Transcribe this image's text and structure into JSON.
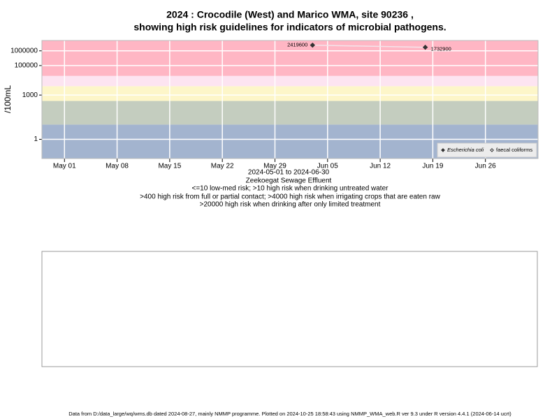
{
  "chart_data": {
    "type": "line",
    "title": "2024 : Crocodile (West) and Marico WMA, site 90236 ,",
    "subtitle": "showing high risk guidelines for indicators of microbial pathogens.",
    "y_label": "/100mL",
    "x_caption": "2024-05-01 to 2024-06-30",
    "site_name": "Zeekoegat Sewage Effluent",
    "notes": [
      "<=10 low-med risk; >10 high risk when drinking untreated water",
      ">400 high risk from full or partial contact; >4000 high risk when irrigating crops that are eaten raw",
      ">20000 high risk when drinking after only limited treatment"
    ],
    "footer": "Data from D:/data_large/wq/wms.db dated 2024-08-27, mainly NMMP programme. Plotted on 2024-10-25 18:58:43 using NMMP_WMA_web.R ver 9.3 under R version 4.4.1 (2024-06-14 ucrt)",
    "x": [
      "2024-06-03",
      "2024-06-18"
    ],
    "series": [
      {
        "name": "Escherichia coli",
        "color": "#333333",
        "line_color": "#f3e4ea",
        "marker": "filled-diamond",
        "values": [
          2419600,
          1732900
        ]
      },
      {
        "name": "faecal coliforms",
        "color": "#333333",
        "line_color": "#f3e4ea",
        "marker": "open-diamond",
        "values": [
          null,
          null
        ]
      }
    ],
    "log_y": true,
    "xlim": [
      "2024-04-28",
      "2024-07-03"
    ],
    "xticks": [
      {
        "value": "2024-05-01",
        "label": "May 01"
      },
      {
        "value": "2024-05-08",
        "label": "May 08"
      },
      {
        "value": "2024-05-15",
        "label": "May 15"
      },
      {
        "value": "2024-05-22",
        "label": "May 22"
      },
      {
        "value": "2024-05-29",
        "label": "May 29"
      },
      {
        "value": "2024-06-05",
        "label": "Jun 05"
      },
      {
        "value": "2024-06-12",
        "label": "Jun 12"
      },
      {
        "value": "2024-06-19",
        "label": "Jun 19"
      },
      {
        "value": "2024-06-26",
        "label": "Jun 26"
      }
    ],
    "ylim": [
      0.05,
      5000000
    ],
    "yticks": [
      1,
      1000,
      100000,
      1000000
    ],
    "thresholds": [
      10,
      400,
      4000,
      20000
    ],
    "band_colors": [
      "#a3b4cf",
      "#c4cdbf",
      "#fdf6c9",
      "#fde4f1",
      "#ffb6c4"
    ],
    "grid": true,
    "legend": "bottom-right"
  }
}
